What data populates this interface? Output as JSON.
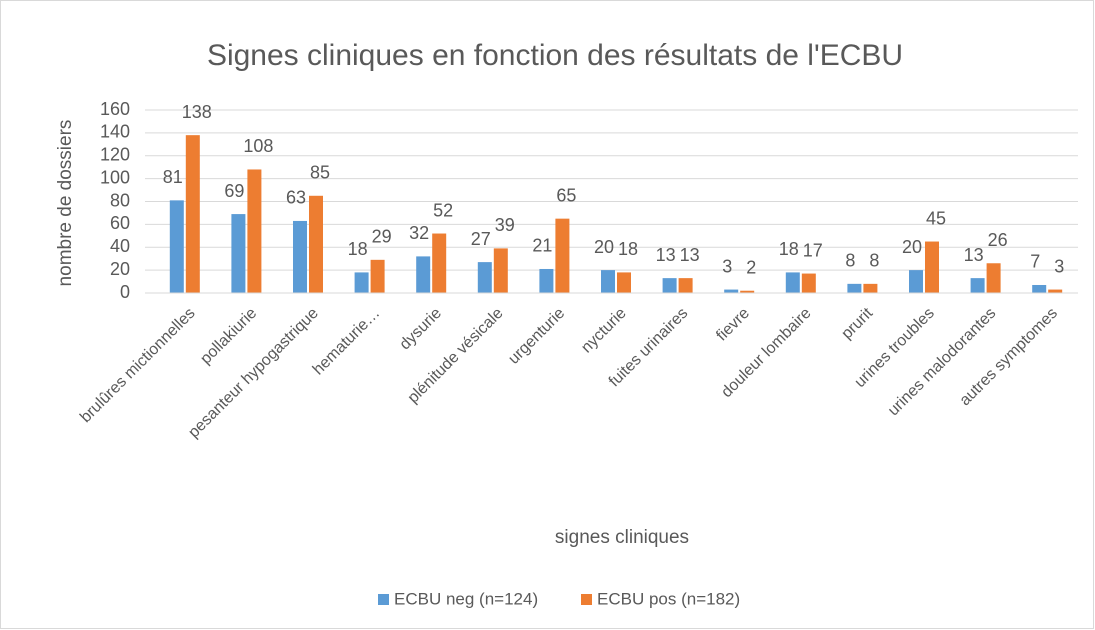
{
  "chart_data": {
    "type": "bar",
    "title": "Signes cliniques en fonction des résultats de l'ECBU",
    "xlabel": "signes cliniques",
    "ylabel": "nombre de dossiers",
    "categories": [
      "brulûres mictionnelles",
      "pollakiurie",
      "pesanteur hypogastrique",
      "hematurie…",
      "dysurie",
      "plénitude vésicale",
      "urgenturie",
      "nycturie",
      "fuites urinaires",
      "fievre",
      "douleur lombaire",
      "prurit",
      "urines troubles",
      "urines malodorantes",
      "autres symptomes"
    ],
    "series": [
      {
        "name": "ECBU neg (n=124)",
        "color": "#5b9bd5",
        "values": [
          81,
          69,
          63,
          18,
          32,
          27,
          21,
          20,
          13,
          3,
          18,
          8,
          20,
          13,
          7
        ]
      },
      {
        "name": "ECBU pos (n=182)",
        "color": "#ed7d31",
        "values": [
          138,
          108,
          85,
          29,
          52,
          39,
          65,
          18,
          13,
          2,
          17,
          8,
          45,
          26,
          3
        ]
      }
    ],
    "ylim": [
      0,
      160
    ],
    "yticks": [
      0,
      20,
      40,
      60,
      80,
      100,
      120,
      140,
      160
    ],
    "grid": true,
    "legend": "bottom"
  }
}
